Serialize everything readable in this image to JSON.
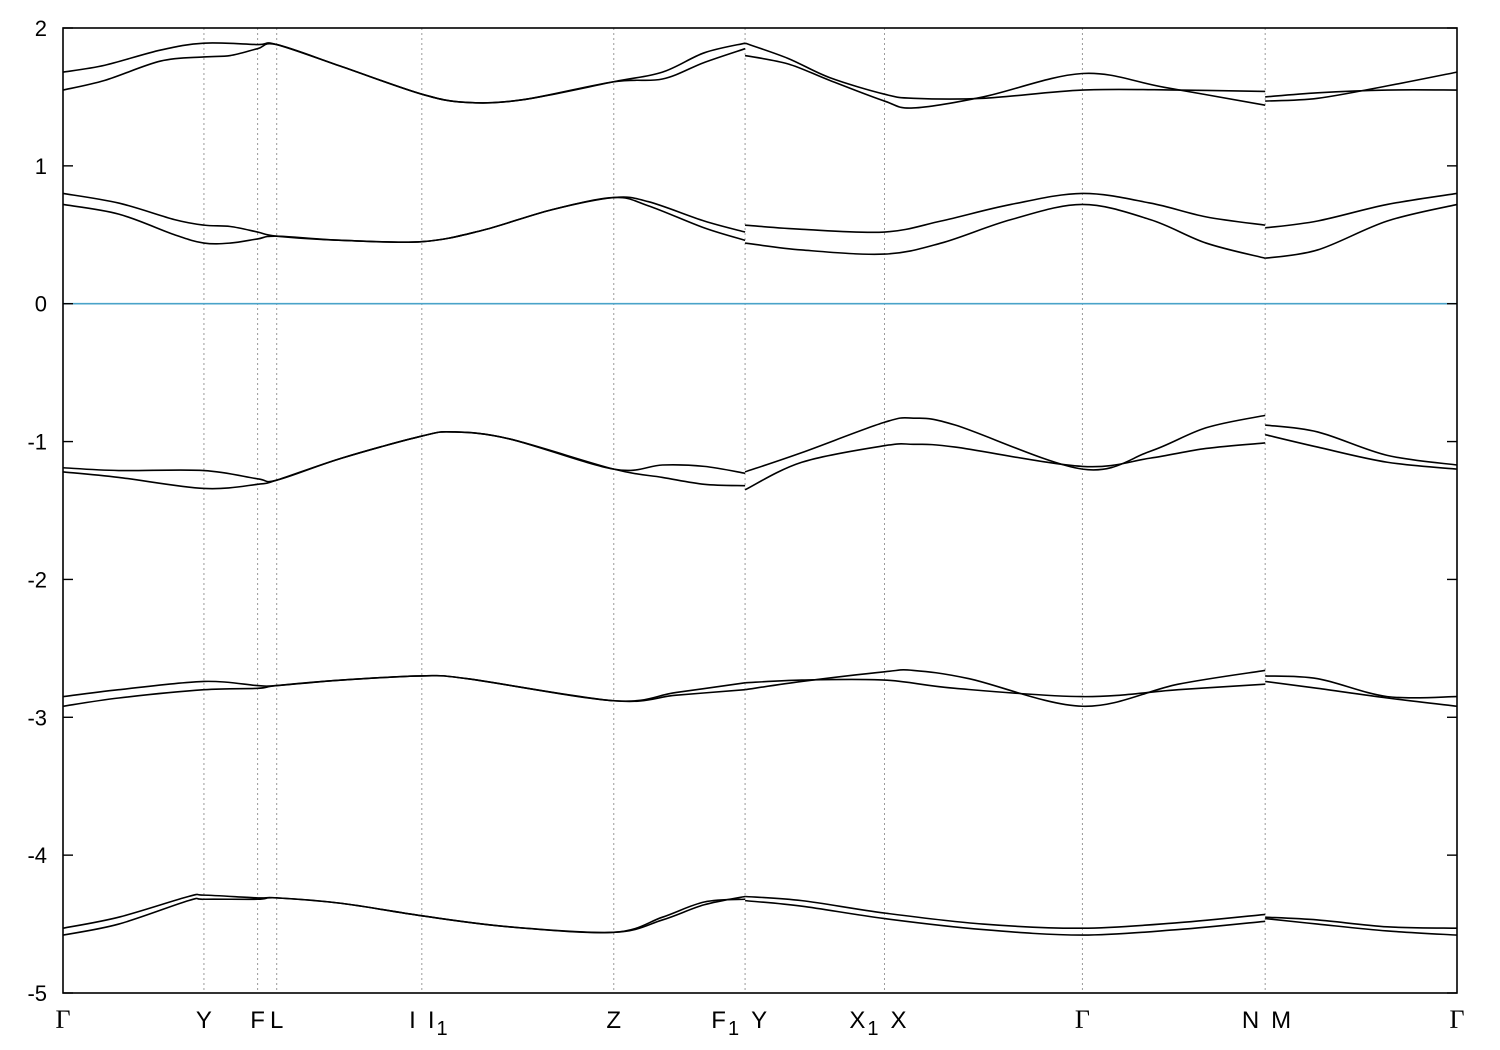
{
  "chart_data": {
    "type": "line",
    "title": "",
    "xlabel": "",
    "ylabel": "",
    "ylim": [
      -5,
      2
    ],
    "yticks": [
      2,
      1,
      0,
      -1,
      -2,
      -3,
      -4,
      -5
    ],
    "xlim": [
      0,
      1
    ],
    "grid": "dashed vertical lines at high-symmetry points",
    "zero_line": {
      "y": 0,
      "color": "#4aa3c9"
    },
    "kpoints": [
      {
        "label": "Γ",
        "sub": "",
        "x": 0.0
      },
      {
        "label": "Y",
        "sub": "",
        "x": 0.1011
      },
      {
        "label": "F",
        "sub": "",
        "x": 0.1396
      },
      {
        "label": "L",
        "sub": "",
        "x": 0.1533
      },
      {
        "label": "I",
        "sub": "",
        "x": 0.2574
      },
      {
        "label": "I",
        "sub": "1",
        "x": 0.2574
      },
      {
        "label": "Z",
        "sub": "",
        "x": 0.3951
      },
      {
        "label": "F",
        "sub": "1",
        "x": 0.4893
      },
      {
        "label": "Y",
        "sub": "",
        "x": 0.4893
      },
      {
        "label": "X",
        "sub": "1",
        "x": 0.5893
      },
      {
        "label": "X",
        "sub": "",
        "x": 0.5893
      },
      {
        "label": "Γ",
        "sub": "",
        "x": 0.7313
      },
      {
        "label": "N",
        "sub": "",
        "x": 0.8624
      },
      {
        "label": "M",
        "sub": "",
        "x": 0.8624
      },
      {
        "label": "Γ",
        "sub": "",
        "x": 1.0
      }
    ],
    "series": [
      {
        "values": [
          [
            0,
            1.55
          ],
          [
            0.03,
            1.62
          ],
          [
            0.07,
            1.76
          ],
          [
            0.1011,
            1.79
          ],
          [
            0.12,
            1.8
          ],
          [
            0.1396,
            1.85
          ],
          [
            0.1533,
            1.88
          ],
          [
            0.2,
            1.72
          ],
          [
            0.2574,
            1.52
          ],
          [
            0.29,
            1.46
          ],
          [
            0.33,
            1.48
          ],
          [
            0.3951,
            1.61
          ],
          [
            0.43,
            1.63
          ],
          [
            0.46,
            1.75
          ],
          [
            0.4893,
            1.85
          ]
        ]
      },
      {
        "values": [
          [
            0,
            1.68
          ],
          [
            0.03,
            1.73
          ],
          [
            0.07,
            1.84
          ],
          [
            0.1011,
            1.89
          ],
          [
            0.1396,
            1.88
          ],
          [
            0.1533,
            1.88
          ],
          [
            0.2,
            1.72
          ],
          [
            0.2574,
            1.52
          ],
          [
            0.29,
            1.46
          ],
          [
            0.33,
            1.48
          ],
          [
            0.3951,
            1.61
          ],
          [
            0.43,
            1.68
          ],
          [
            0.46,
            1.82
          ],
          [
            0.4893,
            1.89
          ]
        ]
      },
      {
        "values": [
          [
            0.4893,
            1.89
          ],
          [
            0.52,
            1.78
          ],
          [
            0.55,
            1.64
          ],
          [
            0.5893,
            1.52
          ],
          [
            0.61,
            1.49
          ],
          [
            0.66,
            1.49
          ],
          [
            0.7313,
            1.55
          ],
          [
            0.8,
            1.55
          ],
          [
            0.8624,
            1.54
          ]
        ]
      },
      {
        "values": [
          [
            0.4893,
            1.8
          ],
          [
            0.52,
            1.74
          ],
          [
            0.55,
            1.62
          ],
          [
            0.5893,
            1.47
          ],
          [
            0.61,
            1.42
          ],
          [
            0.66,
            1.5
          ],
          [
            0.7313,
            1.67
          ],
          [
            0.79,
            1.57
          ],
          [
            0.8624,
            1.44
          ]
        ]
      },
      {
        "values": [
          [
            0.8624,
            1.5
          ],
          [
            0.9,
            1.53
          ],
          [
            0.95,
            1.55
          ],
          [
            1.0,
            1.55
          ]
        ]
      },
      {
        "values": [
          [
            0.8624,
            1.47
          ],
          [
            0.9,
            1.49
          ],
          [
            0.95,
            1.58
          ],
          [
            1.0,
            1.68
          ]
        ]
      },
      {
        "values": [
          [
            0,
            0.8
          ],
          [
            0.04,
            0.73
          ],
          [
            0.08,
            0.61
          ],
          [
            0.1011,
            0.57
          ],
          [
            0.12,
            0.56
          ],
          [
            0.1396,
            0.52
          ],
          [
            0.1533,
            0.49
          ],
          [
            0.2,
            0.46
          ],
          [
            0.2574,
            0.45
          ],
          [
            0.3,
            0.53
          ],
          [
            0.35,
            0.68
          ],
          [
            0.3951,
            0.77
          ],
          [
            0.42,
            0.74
          ],
          [
            0.46,
            0.6
          ],
          [
            0.4893,
            0.52
          ]
        ]
      },
      {
        "values": [
          [
            0,
            0.72
          ],
          [
            0.04,
            0.65
          ],
          [
            0.08,
            0.5
          ],
          [
            0.1011,
            0.44
          ],
          [
            0.12,
            0.44
          ],
          [
            0.1396,
            0.47
          ],
          [
            0.1533,
            0.49
          ],
          [
            0.2,
            0.46
          ],
          [
            0.2574,
            0.45
          ],
          [
            0.3,
            0.53
          ],
          [
            0.35,
            0.68
          ],
          [
            0.3951,
            0.77
          ],
          [
            0.42,
            0.71
          ],
          [
            0.46,
            0.55
          ],
          [
            0.4893,
            0.46
          ]
        ]
      },
      {
        "values": [
          [
            0.4893,
            0.57
          ],
          [
            0.53,
            0.54
          ],
          [
            0.5893,
            0.52
          ],
          [
            0.63,
            0.6
          ],
          [
            0.68,
            0.72
          ],
          [
            0.7313,
            0.8
          ],
          [
            0.78,
            0.73
          ],
          [
            0.82,
            0.63
          ],
          [
            0.8624,
            0.57
          ]
        ]
      },
      {
        "values": [
          [
            0.4893,
            0.44
          ],
          [
            0.53,
            0.39
          ],
          [
            0.5893,
            0.36
          ],
          [
            0.63,
            0.44
          ],
          [
            0.68,
            0.61
          ],
          [
            0.7313,
            0.72
          ],
          [
            0.78,
            0.61
          ],
          [
            0.82,
            0.44
          ],
          [
            0.8624,
            0.33
          ]
        ]
      },
      {
        "values": [
          [
            0.8624,
            0.55
          ],
          [
            0.9,
            0.6
          ],
          [
            0.95,
            0.72
          ],
          [
            1.0,
            0.8
          ]
        ]
      },
      {
        "values": [
          [
            0.8624,
            0.33
          ],
          [
            0.9,
            0.39
          ],
          [
            0.95,
            0.6
          ],
          [
            1.0,
            0.72
          ]
        ]
      },
      {
        "values": [
          [
            0,
            -1.19
          ],
          [
            0.04,
            -1.21
          ],
          [
            0.1011,
            -1.21
          ],
          [
            0.1396,
            -1.27
          ],
          [
            0.1533,
            -1.28
          ],
          [
            0.2,
            -1.12
          ],
          [
            0.2574,
            -0.96
          ],
          [
            0.28,
            -0.93
          ],
          [
            0.32,
            -0.98
          ],
          [
            0.3951,
            -1.2
          ],
          [
            0.43,
            -1.17
          ],
          [
            0.46,
            -1.18
          ],
          [
            0.4893,
            -1.23
          ]
        ]
      },
      {
        "values": [
          [
            0,
            -1.22
          ],
          [
            0.04,
            -1.26
          ],
          [
            0.1011,
            -1.34
          ],
          [
            0.1396,
            -1.31
          ],
          [
            0.1533,
            -1.28
          ],
          [
            0.2,
            -1.12
          ],
          [
            0.2574,
            -0.96
          ],
          [
            0.28,
            -0.93
          ],
          [
            0.32,
            -0.98
          ],
          [
            0.3951,
            -1.2
          ],
          [
            0.43,
            -1.26
          ],
          [
            0.46,
            -1.31
          ],
          [
            0.4893,
            -1.32
          ]
        ]
      },
      {
        "values": [
          [
            0.4893,
            -1.22
          ],
          [
            0.53,
            -1.08
          ],
          [
            0.5893,
            -0.86
          ],
          [
            0.61,
            -0.83
          ],
          [
            0.64,
            -0.88
          ],
          [
            0.7313,
            -1.2
          ],
          [
            0.78,
            -1.07
          ],
          [
            0.82,
            -0.9
          ],
          [
            0.8624,
            -0.81
          ]
        ]
      },
      {
        "values": [
          [
            0.4893,
            -1.35
          ],
          [
            0.53,
            -1.15
          ],
          [
            0.5893,
            -1.03
          ],
          [
            0.61,
            -1.02
          ],
          [
            0.64,
            -1.04
          ],
          [
            0.7313,
            -1.18
          ],
          [
            0.78,
            -1.12
          ],
          [
            0.82,
            -1.05
          ],
          [
            0.8624,
            -1.01
          ]
        ]
      },
      {
        "values": [
          [
            0.8624,
            -0.95
          ],
          [
            0.9,
            -1.04
          ],
          [
            0.95,
            -1.15
          ],
          [
            1.0,
            -1.2
          ]
        ]
      },
      {
        "values": [
          [
            0.8624,
            -0.88
          ],
          [
            0.9,
            -0.93
          ],
          [
            0.95,
            -1.1
          ],
          [
            1.0,
            -1.17
          ]
        ]
      },
      {
        "values": [
          [
            0,
            -2.85
          ],
          [
            0.04,
            -2.8
          ],
          [
            0.1011,
            -2.74
          ],
          [
            0.1396,
            -2.77
          ],
          [
            0.1533,
            -2.77
          ],
          [
            0.2,
            -2.73
          ],
          [
            0.2574,
            -2.7
          ],
          [
            0.29,
            -2.72
          ],
          [
            0.3951,
            -2.88
          ],
          [
            0.44,
            -2.82
          ],
          [
            0.4893,
            -2.75
          ]
        ]
      },
      {
        "values": [
          [
            0,
            -2.92
          ],
          [
            0.04,
            -2.86
          ],
          [
            0.1011,
            -2.8
          ],
          [
            0.1396,
            -2.79
          ],
          [
            0.1533,
            -2.77
          ],
          [
            0.2,
            -2.73
          ],
          [
            0.2574,
            -2.7
          ],
          [
            0.29,
            -2.72
          ],
          [
            0.3951,
            -2.88
          ],
          [
            0.44,
            -2.84
          ],
          [
            0.4893,
            -2.8
          ]
        ]
      },
      {
        "values": [
          [
            0.4893,
            -2.75
          ],
          [
            0.53,
            -2.73
          ],
          [
            0.5893,
            -2.73
          ],
          [
            0.64,
            -2.79
          ],
          [
            0.7313,
            -2.85
          ],
          [
            0.8,
            -2.8
          ],
          [
            0.8624,
            -2.76
          ]
        ]
      },
      {
        "values": [
          [
            0.4893,
            -2.8
          ],
          [
            0.53,
            -2.74
          ],
          [
            0.5893,
            -2.67
          ],
          [
            0.61,
            -2.66
          ],
          [
            0.65,
            -2.72
          ],
          [
            0.7313,
            -2.92
          ],
          [
            0.8,
            -2.76
          ],
          [
            0.8624,
            -2.66
          ]
        ]
      },
      {
        "values": [
          [
            0.8624,
            -2.7
          ],
          [
            0.9,
            -2.72
          ],
          [
            0.95,
            -2.85
          ],
          [
            1.0,
            -2.85
          ]
        ]
      },
      {
        "values": [
          [
            0.8624,
            -2.74
          ],
          [
            0.9,
            -2.79
          ],
          [
            0.95,
            -2.86
          ],
          [
            1.0,
            -2.92
          ]
        ]
      },
      {
        "values": [
          [
            0,
            -4.53
          ],
          [
            0.04,
            -4.45
          ],
          [
            0.09,
            -4.3
          ],
          [
            0.1011,
            -4.29
          ],
          [
            0.1396,
            -4.31
          ],
          [
            0.1533,
            -4.31
          ],
          [
            0.2,
            -4.35
          ],
          [
            0.2574,
            -4.44
          ],
          [
            0.32,
            -4.52
          ],
          [
            0.3951,
            -4.56
          ],
          [
            0.43,
            -4.45
          ],
          [
            0.46,
            -4.34
          ],
          [
            0.4893,
            -4.32
          ]
        ]
      },
      {
        "values": [
          [
            0,
            -4.58
          ],
          [
            0.04,
            -4.5
          ],
          [
            0.09,
            -4.33
          ],
          [
            0.1011,
            -4.32
          ],
          [
            0.1396,
            -4.32
          ],
          [
            0.1533,
            -4.31
          ],
          [
            0.2,
            -4.35
          ],
          [
            0.2574,
            -4.44
          ],
          [
            0.32,
            -4.52
          ],
          [
            0.3951,
            -4.56
          ],
          [
            0.43,
            -4.47
          ],
          [
            0.46,
            -4.36
          ],
          [
            0.4893,
            -4.3
          ]
        ]
      },
      {
        "values": [
          [
            0.4893,
            -4.3
          ],
          [
            0.53,
            -4.33
          ],
          [
            0.5893,
            -4.42
          ],
          [
            0.66,
            -4.5
          ],
          [
            0.7313,
            -4.53
          ],
          [
            0.8,
            -4.49
          ],
          [
            0.8624,
            -4.43
          ]
        ]
      },
      {
        "values": [
          [
            0.4893,
            -4.33
          ],
          [
            0.53,
            -4.37
          ],
          [
            0.5893,
            -4.46
          ],
          [
            0.66,
            -4.54
          ],
          [
            0.7313,
            -4.58
          ],
          [
            0.8,
            -4.54
          ],
          [
            0.8624,
            -4.48
          ]
        ]
      },
      {
        "values": [
          [
            0.8624,
            -4.45
          ],
          [
            0.9,
            -4.47
          ],
          [
            0.95,
            -4.52
          ],
          [
            1.0,
            -4.53
          ]
        ]
      },
      {
        "values": [
          [
            0.8624,
            -4.46
          ],
          [
            0.9,
            -4.5
          ],
          [
            0.95,
            -4.55
          ],
          [
            1.0,
            -4.58
          ]
        ]
      }
    ]
  }
}
